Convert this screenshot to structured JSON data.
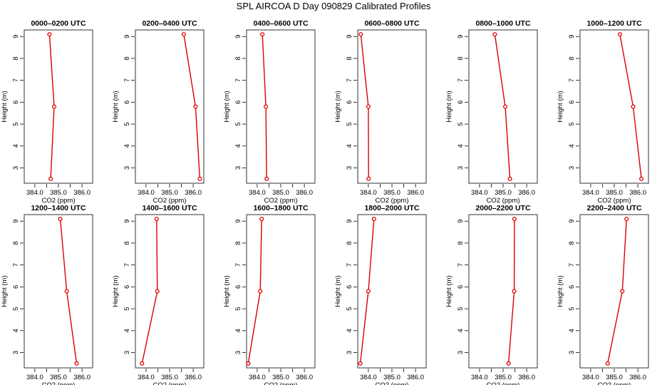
{
  "title": "SPL AIRCOA D  Day 090829  Calibrated Profiles",
  "colors": {
    "line": "#dd0000",
    "frame": "#000000"
  },
  "chart_data": {
    "type": "line",
    "xlabel": "CO2 (ppm)",
    "ylabel": "Height (m)",
    "xlim": [
      383.55,
      386.45
    ],
    "ylim": [
      2.3,
      9.3
    ],
    "xticks": [
      "384.0",
      "385.0",
      "386.0"
    ],
    "yticks": [
      "3",
      "4",
      "5",
      "6",
      "7",
      "8",
      "9"
    ],
    "panels": [
      {
        "title": "0000–0200 UTC",
        "x": [
          384.62,
          384.82,
          384.67
        ],
        "y": [
          9.1,
          5.8,
          2.5
        ]
      },
      {
        "title": "0200–0400 UTC",
        "x": [
          385.6,
          386.1,
          386.28
        ],
        "y": [
          9.1,
          5.8,
          2.5
        ]
      },
      {
        "title": "0400–0600 UTC",
        "x": [
          384.22,
          384.37,
          384.4
        ],
        "y": [
          9.1,
          5.8,
          2.5
        ]
      },
      {
        "title": "0600–0800 UTC",
        "x": [
          383.68,
          384.0,
          384.01
        ],
        "y": [
          9.1,
          5.8,
          2.5
        ]
      },
      {
        "title": "0800–1000 UTC",
        "x": [
          384.65,
          385.09,
          385.29
        ],
        "y": [
          9.1,
          5.8,
          2.5
        ]
      },
      {
        "title": "1000–1200 UTC",
        "x": [
          385.24,
          385.8,
          386.15
        ],
        "y": [
          9.1,
          5.8,
          2.5
        ]
      },
      {
        "title": "1200–1400 UTC",
        "x": [
          385.08,
          385.35,
          385.77
        ],
        "y": [
          9.1,
          5.8,
          2.5
        ]
      },
      {
        "title": "1400–1600 UTC",
        "x": [
          384.45,
          384.48,
          383.83
        ],
        "y": [
          9.1,
          5.8,
          2.5
        ]
      },
      {
        "title": "1600–1800 UTC",
        "x": [
          384.19,
          384.13,
          383.62
        ],
        "y": [
          9.1,
          5.8,
          2.5
        ]
      },
      {
        "title": "1800–2000 UTC",
        "x": [
          384.24,
          384.0,
          383.66
        ],
        "y": [
          9.1,
          5.8,
          2.5
        ]
      },
      {
        "title": "2000–2200 UTC",
        "x": [
          385.48,
          385.47,
          385.23
        ],
        "y": [
          9.1,
          5.8,
          2.5
        ]
      },
      {
        "title": "2200–2400 UTC",
        "x": [
          385.52,
          385.34,
          384.72
        ],
        "y": [
          9.1,
          5.8,
          2.5
        ]
      }
    ]
  }
}
